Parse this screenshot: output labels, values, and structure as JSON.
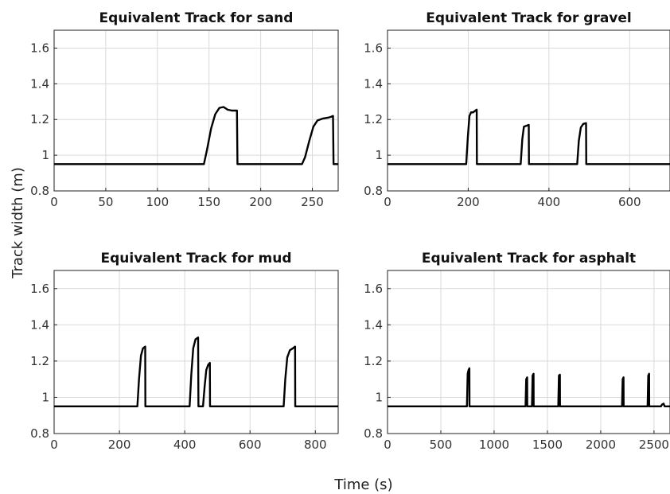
{
  "figure": {
    "xlabel": "Time (s)",
    "ylabel": "Track width (m)"
  },
  "chart_data": [
    {
      "type": "line",
      "title": "Equivalent Track for sand",
      "xlim": [
        0,
        275
      ],
      "ylim": [
        0.8,
        1.7
      ],
      "x_ticks": [
        0,
        50,
        100,
        150,
        200,
        250
      ],
      "x_tick_labels": [
        "0",
        "50",
        "100",
        "150",
        "200",
        "250"
      ],
      "y_ticks": [
        0.8,
        1,
        1.2,
        1.4,
        1.6
      ],
      "y_tick_labels": [
        "0.8",
        "1",
        "1.2",
        "1.4",
        "1.6"
      ],
      "grid": true,
      "series": [
        {
          "x": [
            0,
            145,
            148,
            152,
            156,
            160,
            164,
            168,
            172,
            177,
            177.5,
            240,
            243,
            247,
            251,
            255,
            260,
            265,
            268,
            270,
            270.5,
            275
          ],
          "y": [
            0.95,
            0.95,
            1.03,
            1.15,
            1.23,
            1.265,
            1.27,
            1.255,
            1.25,
            1.25,
            0.95,
            0.95,
            0.99,
            1.08,
            1.16,
            1.195,
            1.205,
            1.21,
            1.215,
            1.22,
            0.95,
            0.95
          ]
        }
      ]
    },
    {
      "type": "line",
      "title": "Equivalent Track for gravel",
      "xlim": [
        0,
        700
      ],
      "ylim": [
        0.8,
        1.7
      ],
      "x_ticks": [
        0,
        200,
        400,
        600
      ],
      "x_tick_labels": [
        "0",
        "200",
        "400",
        "600"
      ],
      "y_ticks": [
        0.8,
        1,
        1.2,
        1.4,
        1.6
      ],
      "y_tick_labels": [
        "0.8",
        "1",
        "1.2",
        "1.4",
        "1.6"
      ],
      "grid": true,
      "series": [
        {
          "x": [
            0,
            195,
            199,
            203,
            207,
            212,
            218,
            221,
            221.5,
            330,
            334,
            338,
            344,
            350,
            350.5,
            470,
            474,
            479,
            485,
            492,
            492.5,
            700
          ],
          "y": [
            0.95,
            0.95,
            1.1,
            1.22,
            1.24,
            1.24,
            1.25,
            1.255,
            0.95,
            0.95,
            1.09,
            1.16,
            1.165,
            1.17,
            0.95,
            0.95,
            1.08,
            1.155,
            1.175,
            1.18,
            0.95,
            0.95
          ]
        }
      ]
    },
    {
      "type": "line",
      "title": "Equivalent Track for mud",
      "xlim": [
        0,
        870
      ],
      "ylim": [
        0.8,
        1.7
      ],
      "x_ticks": [
        0,
        200,
        400,
        600,
        800
      ],
      "x_tick_labels": [
        "0",
        "200",
        "400",
        "600",
        "800"
      ],
      "y_ticks": [
        0.8,
        1,
        1.2,
        1.4,
        1.6
      ],
      "y_tick_labels": [
        "0.8",
        "1",
        "1.2",
        "1.4",
        "1.6"
      ],
      "grid": true,
      "series": [
        {
          "x": [
            0,
            255,
            260,
            266,
            272,
            279,
            279.5,
            415,
            420,
            426,
            433,
            441,
            442,
            456,
            461,
            466,
            472,
            477,
            477.5,
            703,
            708,
            714,
            722,
            731,
            738,
            738.5,
            870
          ],
          "y": [
            0.95,
            0.95,
            1.1,
            1.23,
            1.27,
            1.28,
            0.95,
            0.95,
            1.12,
            1.27,
            1.32,
            1.33,
            0.95,
            0.95,
            1.06,
            1.15,
            1.18,
            1.19,
            0.95,
            0.95,
            1.1,
            1.22,
            1.26,
            1.27,
            1.28,
            0.95,
            0.95
          ]
        }
      ]
    },
    {
      "type": "line",
      "title": "Equivalent Track for asphalt",
      "xlim": [
        0,
        2650
      ],
      "ylim": [
        0.8,
        1.7
      ],
      "x_ticks": [
        0,
        500,
        1000,
        1500,
        2000,
        2500
      ],
      "x_tick_labels": [
        "0",
        "500",
        "1000",
        "1500",
        "2000",
        "2500"
      ],
      "y_ticks": [
        0.8,
        1,
        1.2,
        1.4,
        1.6
      ],
      "y_tick_labels": [
        "0.8",
        "1",
        "1.2",
        "1.4",
        "1.6"
      ],
      "grid": true,
      "series": [
        {
          "x": [
            0,
            745,
            752,
            760,
            768,
            769,
            1295,
            1301,
            1310,
            1311,
            1355,
            1361,
            1370,
            1371,
            1602,
            1608,
            1617,
            1618,
            2200,
            2206,
            2214,
            2215,
            2440,
            2446,
            2454,
            2455,
            2565,
            2575,
            2590,
            2600,
            2650
          ],
          "y": [
            0.95,
            0.95,
            1.13,
            1.15,
            1.16,
            0.95,
            0.95,
            1.1,
            1.11,
            0.95,
            0.95,
            1.12,
            1.13,
            0.95,
            0.95,
            1.12,
            1.125,
            0.95,
            0.95,
            1.1,
            1.11,
            0.95,
            0.95,
            1.12,
            1.13,
            0.95,
            0.95,
            0.96,
            0.965,
            0.95,
            0.95
          ]
        }
      ]
    }
  ]
}
